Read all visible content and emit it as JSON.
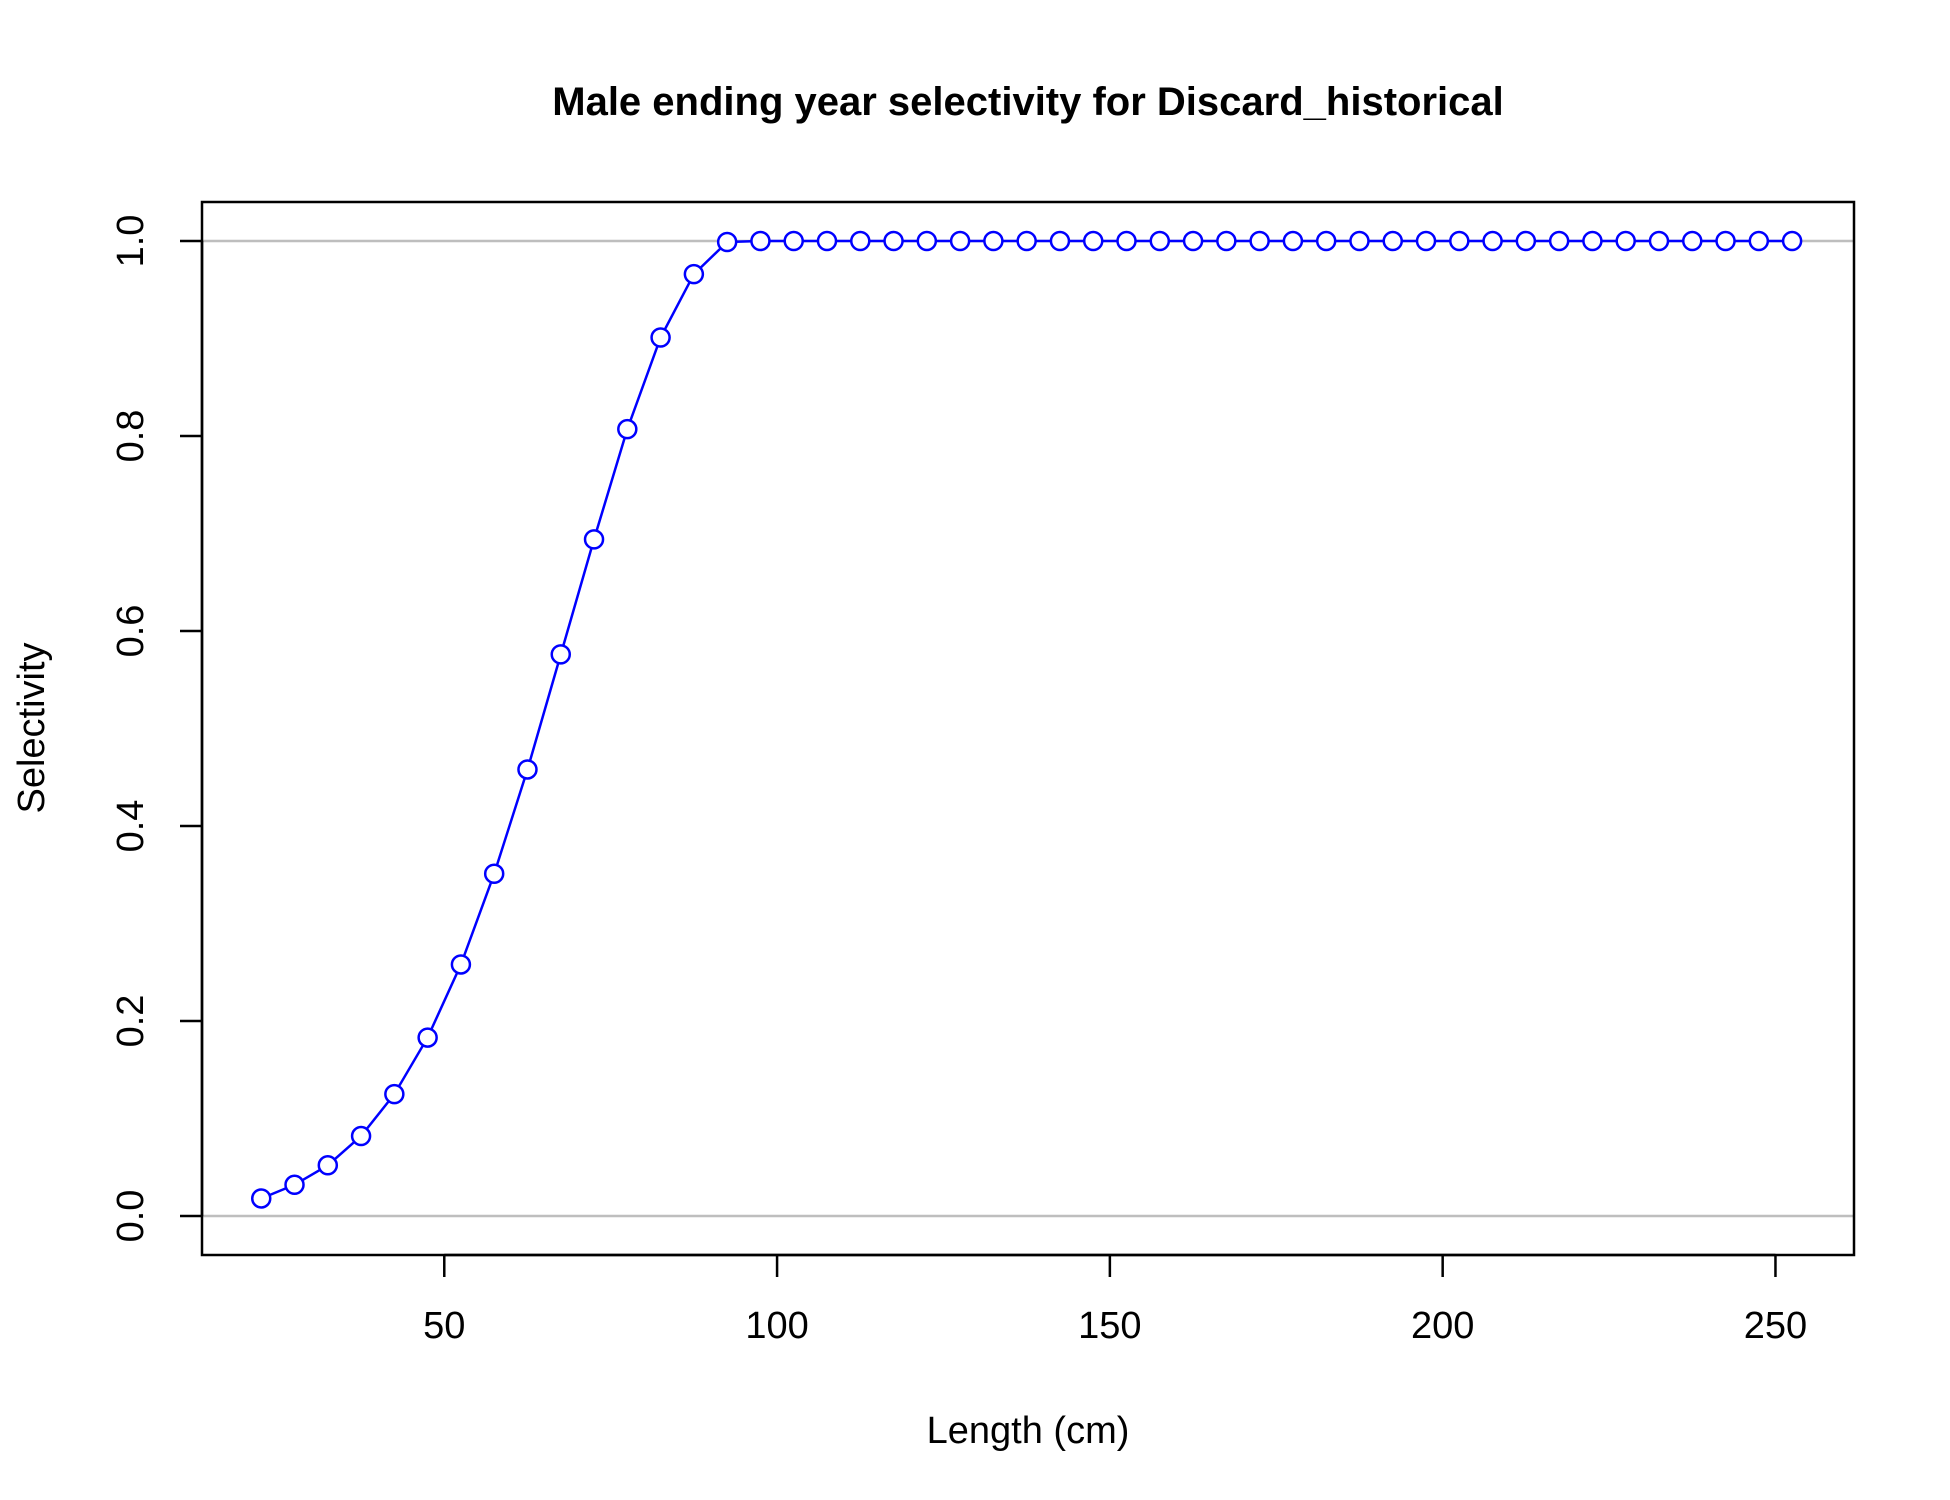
{
  "chart_data": {
    "type": "line",
    "title": "Male ending year selectivity for Discard_historical",
    "xlabel": "Length (cm)",
    "ylabel": "Selectivity",
    "xlim": [
      13.6,
      261.8
    ],
    "ylim": [
      -0.04,
      1.04
    ],
    "x_ticks": [
      50,
      100,
      150,
      200,
      250
    ],
    "y_ticks": [
      0.0,
      0.2,
      0.4,
      0.6,
      0.8,
      1.0
    ],
    "x_tick_labels": [
      "50",
      "100",
      "150",
      "200",
      "250"
    ],
    "y_tick_labels": [
      "0.0",
      "0.2",
      "0.4",
      "0.6",
      "0.8",
      "1.0"
    ],
    "reference_lines_y": [
      0,
      1
    ],
    "grid": false,
    "series": [
      {
        "color": "#0000ff",
        "marker": "open-circle",
        "x": [
          22.5,
          27.5,
          32.5,
          37.5,
          42.5,
          47.5,
          52.5,
          57.5,
          62.5,
          67.5,
          72.5,
          77.5,
          82.5,
          87.5,
          92.5,
          97.5,
          102.5,
          107.5,
          112.5,
          117.5,
          122.5,
          127.5,
          132.5,
          137.5,
          142.5,
          147.5,
          152.5,
          157.5,
          162.5,
          167.5,
          172.5,
          177.5,
          182.5,
          187.5,
          192.5,
          197.5,
          202.5,
          207.5,
          212.5,
          217.5,
          222.5,
          227.5,
          232.5,
          237.5,
          242.5,
          247.5,
          252.5
        ],
        "values": [
          0.018,
          0.032,
          0.052,
          0.082,
          0.125,
          0.183,
          0.258,
          0.351,
          0.458,
          0.576,
          0.694,
          0.807,
          0.901,
          0.966,
          0.999,
          1.0,
          1.0,
          1.0,
          1.0,
          1.0,
          1.0,
          1.0,
          1.0,
          1.0,
          1.0,
          1.0,
          1.0,
          1.0,
          1.0,
          1.0,
          1.0,
          1.0,
          1.0,
          1.0,
          1.0,
          1.0,
          1.0,
          1.0,
          1.0,
          1.0,
          1.0,
          1.0,
          1.0,
          1.0,
          1.0,
          1.0,
          1.0
        ]
      }
    ]
  }
}
